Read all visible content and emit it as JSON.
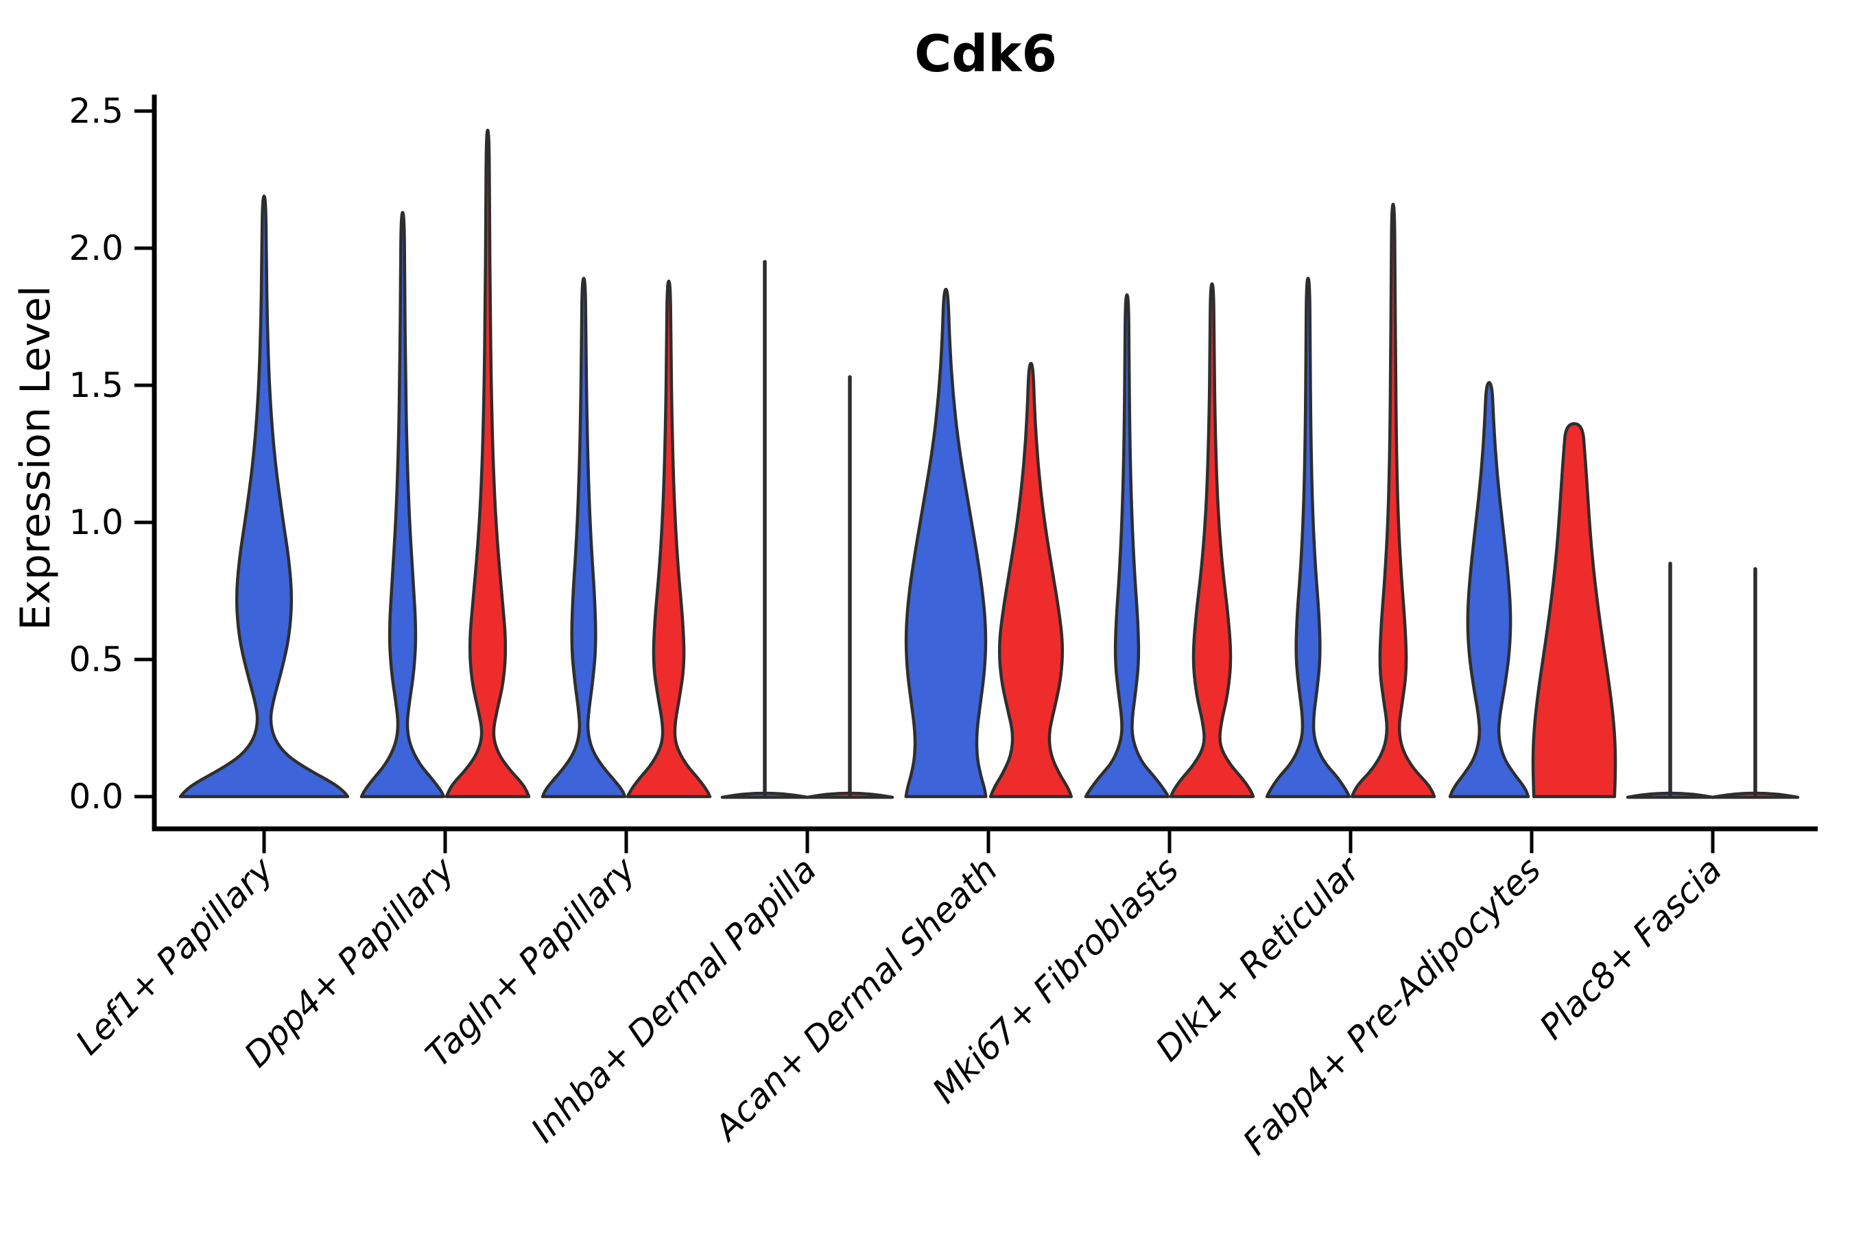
{
  "title": "Cdk6",
  "ylabel": "Expression Level",
  "colors": {
    "blue": "#3D64D8",
    "red": "#EE2C2C",
    "outline": "#2E2E2E",
    "axis": "#000000",
    "background": "#FFFFFF"
  },
  "chart_data": {
    "type": "violin",
    "title": "Cdk6",
    "xlabel": "",
    "ylabel": "Expression Level",
    "ylim": [
      0.0,
      2.5
    ],
    "yticks": [
      "0.0",
      "0.5",
      "1.0",
      "1.5",
      "2.0",
      "2.5"
    ],
    "grid": false,
    "legend": null,
    "categories": [
      "Lef1+ Papillary",
      "Dpp4+ Papillary",
      "Tagln+ Papillary",
      "Inhba+ Dermal Papilla",
      "Acan+ Dermal Sheath",
      "Mki67+ Fibroblasts",
      "Dlk1+ Reticular",
      "Fabp4+ Pre-Adipocytes",
      "Plac8+ Fascia"
    ],
    "groups": [
      {
        "label": "Lef1+ Papillary",
        "violins": [
          {
            "color": "blue",
            "position": "center",
            "shape": "violin",
            "max": 2.19,
            "profile": [
              [
                2.19,
                0.02
              ],
              [
                1.95,
                0.028
              ],
              [
                1.7,
                0.04
              ],
              [
                1.45,
                0.07
              ],
              [
                1.22,
                0.13
              ],
              [
                1.02,
                0.22
              ],
              [
                0.86,
                0.3
              ],
              [
                0.72,
                0.335
              ],
              [
                0.58,
                0.3
              ],
              [
                0.46,
                0.21
              ],
              [
                0.35,
                0.11
              ],
              [
                0.28,
                0.07
              ],
              [
                0.21,
                0.12
              ],
              [
                0.15,
                0.27
              ],
              [
                0.1,
                0.52
              ],
              [
                0.05,
                0.82
              ],
              [
                0.02,
                0.95
              ],
              [
                0,
                1.0
              ]
            ]
          }
        ]
      },
      {
        "label": "Dpp4+ Papillary",
        "violins": [
          {
            "color": "blue",
            "position": "left",
            "shape": "violin",
            "max": 2.13,
            "profile": [
              [
                2.13,
                0.04
              ],
              [
                1.85,
                0.05
              ],
              [
                1.55,
                0.07
              ],
              [
                1.28,
                0.1
              ],
              [
                1.02,
                0.16
              ],
              [
                0.8,
                0.25
              ],
              [
                0.6,
                0.33
              ],
              [
                0.46,
                0.28
              ],
              [
                0.34,
                0.16
              ],
              [
                0.26,
                0.1
              ],
              [
                0.19,
                0.17
              ],
              [
                0.12,
                0.4
              ],
              [
                0.06,
                0.74
              ],
              [
                0.02,
                0.94
              ],
              [
                0,
                1.0
              ]
            ]
          },
          {
            "color": "red",
            "position": "right",
            "shape": "violin",
            "max": 2.43,
            "profile": [
              [
                2.43,
                0.035
              ],
              [
                2.1,
                0.045
              ],
              [
                1.8,
                0.06
              ],
              [
                1.5,
                0.085
              ],
              [
                1.22,
                0.13
              ],
              [
                0.97,
                0.21
              ],
              [
                0.74,
                0.34
              ],
              [
                0.56,
                0.45
              ],
              [
                0.42,
                0.39
              ],
              [
                0.31,
                0.22
              ],
              [
                0.23,
                0.12
              ],
              [
                0.16,
                0.24
              ],
              [
                0.1,
                0.52
              ],
              [
                0.05,
                0.83
              ],
              [
                0.02,
                0.95
              ],
              [
                0,
                1.0
              ]
            ]
          }
        ]
      },
      {
        "label": "Tagln+ Papillary",
        "violins": [
          {
            "color": "blue",
            "position": "left",
            "shape": "violin",
            "max": 1.89,
            "profile": [
              [
                1.89,
                0.04
              ],
              [
                1.65,
                0.055
              ],
              [
                1.4,
                0.075
              ],
              [
                1.15,
                0.115
              ],
              [
                0.92,
                0.18
              ],
              [
                0.72,
                0.27
              ],
              [
                0.55,
                0.3
              ],
              [
                0.42,
                0.22
              ],
              [
                0.31,
                0.12
              ],
              [
                0.24,
                0.09
              ],
              [
                0.17,
                0.2
              ],
              [
                0.11,
                0.45
              ],
              [
                0.05,
                0.8
              ],
              [
                0.02,
                0.95
              ],
              [
                0,
                1.0
              ]
            ]
          },
          {
            "color": "red",
            "position": "right",
            "shape": "violin",
            "max": 1.88,
            "profile": [
              [
                1.88,
                0.04
              ],
              [
                1.62,
                0.055
              ],
              [
                1.35,
                0.08
              ],
              [
                1.08,
                0.13
              ],
              [
                0.84,
                0.22
              ],
              [
                0.63,
                0.35
              ],
              [
                0.48,
                0.38
              ],
              [
                0.36,
                0.26
              ],
              [
                0.26,
                0.14
              ],
              [
                0.19,
                0.16
              ],
              [
                0.12,
                0.4
              ],
              [
                0.06,
                0.75
              ],
              [
                0.02,
                0.94
              ],
              [
                0,
                1.0
              ]
            ]
          }
        ]
      },
      {
        "label": "Inhba+ Dermal Papilla",
        "violins": [
          {
            "color": "blue",
            "position": "left",
            "shape": "line",
            "max": 1.95,
            "profile": []
          },
          {
            "color": "red",
            "position": "right",
            "shape": "line",
            "max": 1.53,
            "profile": []
          }
        ]
      },
      {
        "label": "Acan+ Dermal Sheath",
        "violins": [
          {
            "color": "blue",
            "position": "left",
            "shape": "violin",
            "max": 1.85,
            "profile": [
              [
                1.85,
                0.05
              ],
              [
                1.66,
                0.09
              ],
              [
                1.47,
                0.17
              ],
              [
                1.28,
                0.31
              ],
              [
                1.09,
                0.52
              ],
              [
                0.9,
                0.74
              ],
              [
                0.74,
                0.9
              ],
              [
                0.6,
                0.975
              ],
              [
                0.47,
                0.95
              ],
              [
                0.34,
                0.84
              ],
              [
                0.24,
                0.75
              ],
              [
                0.15,
                0.75
              ],
              [
                0.08,
                0.84
              ],
              [
                0.03,
                0.94
              ],
              [
                0,
                0.97
              ]
            ]
          },
          {
            "color": "red",
            "position": "right",
            "shape": "violin",
            "max": 1.58,
            "profile": [
              [
                1.58,
                0.05
              ],
              [
                1.4,
                0.09
              ],
              [
                1.21,
                0.17
              ],
              [
                1.02,
                0.31
              ],
              [
                0.84,
                0.5
              ],
              [
                0.68,
                0.68
              ],
              [
                0.55,
                0.78
              ],
              [
                0.43,
                0.73
              ],
              [
                0.32,
                0.57
              ],
              [
                0.23,
                0.43
              ],
              [
                0.15,
                0.48
              ],
              [
                0.08,
                0.7
              ],
              [
                0.03,
                0.91
              ],
              [
                0,
                0.98
              ]
            ]
          }
        ]
      },
      {
        "label": "Mki67+ Fibroblasts",
        "violins": [
          {
            "color": "blue",
            "position": "left",
            "shape": "violin",
            "max": 1.83,
            "profile": [
              [
                1.83,
                0.04
              ],
              [
                1.58,
                0.05
              ],
              [
                1.3,
                0.07
              ],
              [
                1.05,
                0.11
              ],
              [
                0.82,
                0.18
              ],
              [
                0.63,
                0.27
              ],
              [
                0.49,
                0.29
              ],
              [
                0.37,
                0.2
              ],
              [
                0.28,
                0.12
              ],
              [
                0.21,
                0.13
              ],
              [
                0.13,
                0.33
              ],
              [
                0.07,
                0.68
              ],
              [
                0.02,
                0.93
              ],
              [
                0,
                1.0
              ]
            ]
          },
          {
            "color": "red",
            "position": "right",
            "shape": "violin",
            "max": 1.87,
            "profile": [
              [
                1.87,
                0.04
              ],
              [
                1.62,
                0.05
              ],
              [
                1.35,
                0.075
              ],
              [
                1.08,
                0.13
              ],
              [
                0.85,
                0.24
              ],
              [
                0.65,
                0.4
              ],
              [
                0.5,
                0.47
              ],
              [
                0.37,
                0.38
              ],
              [
                0.27,
                0.22
              ],
              [
                0.19,
                0.17
              ],
              [
                0.12,
                0.42
              ],
              [
                0.06,
                0.77
              ],
              [
                0.02,
                0.95
              ],
              [
                0,
                1.0
              ]
            ]
          }
        ]
      },
      {
        "label": "Dlk1+ Reticular",
        "violins": [
          {
            "color": "blue",
            "position": "left",
            "shape": "violin",
            "max": 1.89,
            "profile": [
              [
                1.89,
                0.04
              ],
              [
                1.62,
                0.05
              ],
              [
                1.35,
                0.065
              ],
              [
                1.08,
                0.1
              ],
              [
                0.85,
                0.17
              ],
              [
                0.66,
                0.27
              ],
              [
                0.51,
                0.3
              ],
              [
                0.39,
                0.22
              ],
              [
                0.29,
                0.13
              ],
              [
                0.21,
                0.14
              ],
              [
                0.13,
                0.36
              ],
              [
                0.07,
                0.72
              ],
              [
                0.02,
                0.94
              ],
              [
                0,
                1.0
              ]
            ]
          },
          {
            "color": "red",
            "position": "right",
            "shape": "violin",
            "max": 2.16,
            "profile": [
              [
                2.16,
                0.035
              ],
              [
                1.88,
                0.045
              ],
              [
                1.58,
                0.06
              ],
              [
                1.28,
                0.08
              ],
              [
                1.02,
                0.12
              ],
              [
                0.8,
                0.2
              ],
              [
                0.61,
                0.3
              ],
              [
                0.46,
                0.33
              ],
              [
                0.34,
                0.22
              ],
              [
                0.25,
                0.13
              ],
              [
                0.17,
                0.22
              ],
              [
                0.1,
                0.5
              ],
              [
                0.05,
                0.82
              ],
              [
                0.02,
                0.95
              ],
              [
                0,
                1.0
              ]
            ]
          }
        ]
      },
      {
        "label": "Fabp4+ Pre-Adipocytes",
        "violins": [
          {
            "color": "blue",
            "position": "left",
            "shape": "violin",
            "max": 1.51,
            "profile": [
              [
                1.51,
                0.07
              ],
              [
                1.36,
                0.11
              ],
              [
                1.18,
                0.19
              ],
              [
                1.0,
                0.32
              ],
              [
                0.83,
                0.45
              ],
              [
                0.67,
                0.53
              ],
              [
                0.53,
                0.5
              ],
              [
                0.4,
                0.38
              ],
              [
                0.3,
                0.26
              ],
              [
                0.22,
                0.22
              ],
              [
                0.14,
                0.35
              ],
              [
                0.08,
                0.62
              ],
              [
                0.03,
                0.88
              ],
              [
                0,
                0.95
              ]
            ]
          },
          {
            "color": "red",
            "position": "right",
            "shape": "violin",
            "max": 1.36,
            "flat_top": true,
            "profile": [
              [
                1.36,
                0.2
              ],
              [
                1.25,
                0.26
              ],
              [
                1.12,
                0.32
              ],
              [
                0.98,
                0.38
              ],
              [
                0.84,
                0.46
              ],
              [
                0.7,
                0.57
              ],
              [
                0.56,
                0.7
              ],
              [
                0.42,
                0.84
              ],
              [
                0.29,
                0.95
              ],
              [
                0.18,
                1.0
              ],
              [
                0.08,
                1.0
              ],
              [
                0,
                0.98
              ]
            ]
          }
        ]
      },
      {
        "label": "Plac8+ Fascia",
        "violins": [
          {
            "color": "blue",
            "position": "left",
            "shape": "line",
            "max": 0.85,
            "profile": []
          },
          {
            "color": "red",
            "position": "right",
            "shape": "line",
            "max": 0.83,
            "profile": []
          }
        ]
      }
    ]
  }
}
